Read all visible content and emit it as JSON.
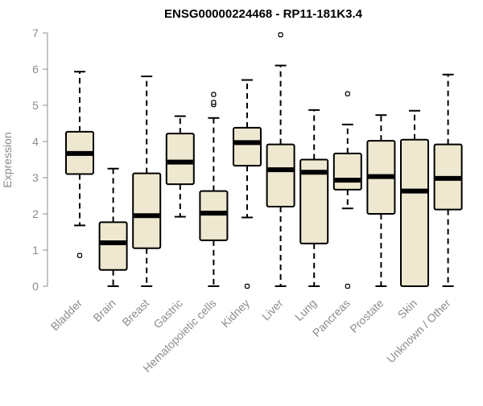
{
  "chart_data": {
    "type": "boxplot",
    "title": "ENSG00000224468 - RP11-181K3.4",
    "xlabel": "",
    "ylabel": "Expression",
    "ylim": [
      0,
      7
    ],
    "yticks": [
      0,
      1,
      2,
      3,
      4,
      5,
      6,
      7
    ],
    "grid": false,
    "legend": "none",
    "categories": [
      "Bladder",
      "Brain",
      "Breast",
      "Gastric",
      "Hematopoietic cells",
      "Kidney",
      "Liver",
      "Lung",
      "Pancreas",
      "Prostate",
      "Skin",
      "Unknown / Other"
    ],
    "boxes": [
      {
        "whisker_low": 1.68,
        "q1": 3.1,
        "median": 3.67,
        "q3": 4.27,
        "whisker_high": 5.93,
        "outliers": [
          0.85
        ]
      },
      {
        "whisker_low": 0.0,
        "q1": 0.45,
        "median": 1.2,
        "q3": 1.77,
        "whisker_high": 3.25,
        "outliers": []
      },
      {
        "whisker_low": 0.0,
        "q1": 1.05,
        "median": 1.95,
        "q3": 3.12,
        "whisker_high": 5.8,
        "outliers": []
      },
      {
        "whisker_low": 1.92,
        "q1": 2.82,
        "median": 3.43,
        "q3": 4.22,
        "whisker_high": 4.7,
        "outliers": []
      },
      {
        "whisker_low": 0.0,
        "q1": 1.27,
        "median": 2.02,
        "q3": 2.63,
        "whisker_high": 4.65,
        "outliers": [
          5.02,
          5.08,
          5.3
        ]
      },
      {
        "whisker_low": 1.9,
        "q1": 3.33,
        "median": 3.97,
        "q3": 4.38,
        "whisker_high": 5.7,
        "outliers": [
          0.0
        ]
      },
      {
        "whisker_low": 0.0,
        "q1": 2.2,
        "median": 3.22,
        "q3": 3.92,
        "whisker_high": 6.1,
        "outliers": [
          6.95
        ]
      },
      {
        "whisker_low": 0.0,
        "q1": 1.18,
        "median": 3.15,
        "q3": 3.5,
        "whisker_high": 4.87,
        "outliers": []
      },
      {
        "whisker_low": 2.15,
        "q1": 2.67,
        "median": 2.93,
        "q3": 3.67,
        "whisker_high": 4.47,
        "outliers": [
          5.32,
          0.0
        ]
      },
      {
        "whisker_low": 0.0,
        "q1": 2.0,
        "median": 3.03,
        "q3": 4.02,
        "whisker_high": 4.73,
        "outliers": []
      },
      {
        "whisker_low": 0.0,
        "q1": 0.0,
        "median": 2.63,
        "q3": 4.05,
        "whisker_high": 4.85,
        "outliers": []
      },
      {
        "whisker_low": 0.0,
        "q1": 2.12,
        "median": 2.98,
        "q3": 3.92,
        "whisker_high": 5.85,
        "outliers": []
      }
    ]
  },
  "colors": {
    "box_fill": "#ede8cf",
    "box_stroke": "#000000",
    "axis": "#8c8c8c",
    "text": "#8c8c8c",
    "title": "#000000"
  }
}
